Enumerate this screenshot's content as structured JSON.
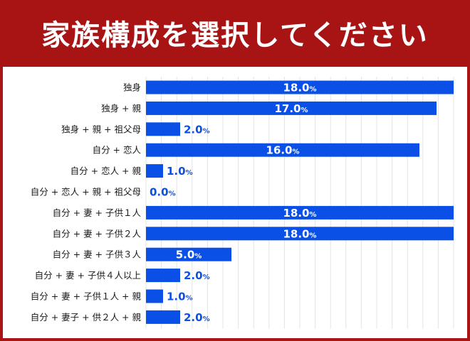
{
  "header": {
    "title": "家族構成を選択してください"
  },
  "chart_data": {
    "type": "bar",
    "orientation": "horizontal",
    "categories": [
      "独身",
      "独身 + 親",
      "独身 + 親 + 祖父母",
      "自分 + 恋人",
      "自分 + 恋人 + 親",
      "自分 + 恋人 + 親 + 祖父母",
      "自分 + 妻 + 子供１人",
      "自分 + 妻 + 子供２人",
      "自分 + 妻 + 子供３人",
      "自分 + 妻 + 子供４人以上",
      "自分 + 妻 + 子供１人 + 親",
      "自分 + 妻子 + 供２人 + 親"
    ],
    "values": [
      18.0,
      17.0,
      2.0,
      16.0,
      1.0,
      0.0,
      18.0,
      18.0,
      5.0,
      2.0,
      1.0,
      2.0
    ],
    "value_labels": [
      "18.0",
      "17.0",
      "2.0",
      "16.0",
      "1.0",
      "0.0",
      "18.0",
      "18.0",
      "5.0",
      "2.0",
      "1.0",
      "2.0"
    ],
    "unit": "%",
    "xlim": [
      0,
      18
    ],
    "grid": true,
    "bar_color": "#0a4fe6",
    "label_inside_color": "#ffffff",
    "label_outside_color": "#0a4fe6"
  },
  "colors": {
    "header_bg": "#a81414",
    "panel_bg": "#ffffff",
    "grid": "#e4e4e4"
  }
}
